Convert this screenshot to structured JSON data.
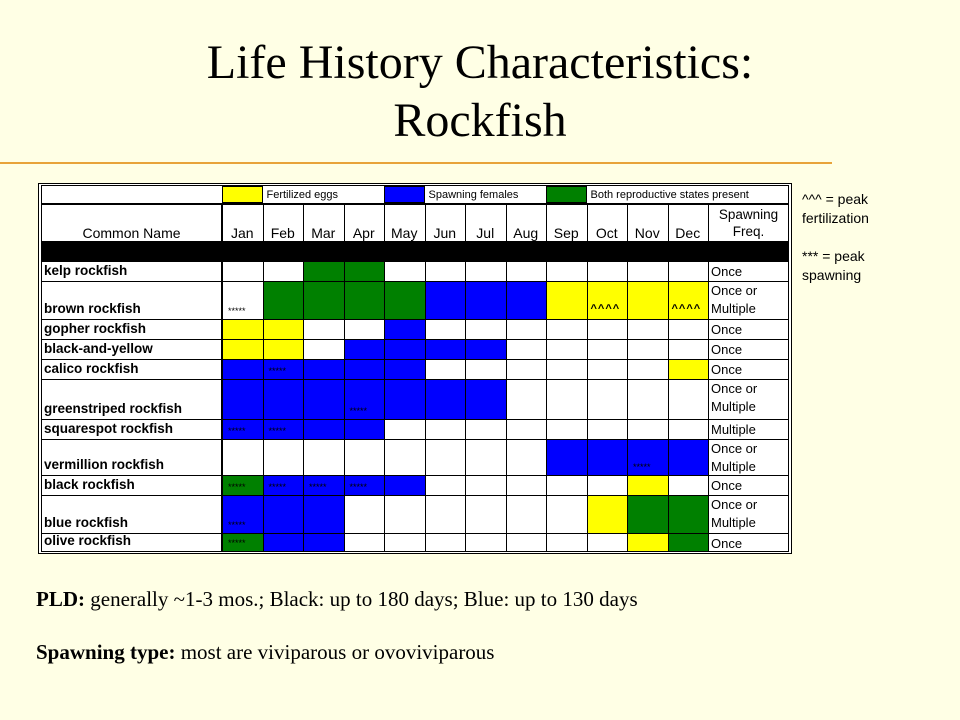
{
  "slide": {
    "title_line1": "Life History Characteristics:",
    "title_line2": "Rockfish"
  },
  "legend": {
    "fertilized": {
      "label": "Fertilized eggs",
      "color": "#ffff00"
    },
    "spawning": {
      "label": "Spawning females",
      "color": "#0000ff"
    },
    "both": {
      "label": "Both reproductive states present",
      "color": "#008000"
    }
  },
  "columns": {
    "common_name": "Common Name",
    "months": [
      "Jan",
      "Feb",
      "Mar",
      "Apr",
      "May",
      "Jun",
      "Jul",
      "Aug",
      "Sep",
      "Oct",
      "Nov",
      "Dec"
    ],
    "freq_line1": "Spawning",
    "freq_line2": "Freq."
  },
  "notes": {
    "peak_fert": "^^^ = peak\nfertilization",
    "peak_spawn": " *** = peak\nspawning"
  },
  "colors": {
    "Y": "#ffff00",
    "B": "#0000ff",
    "G": "#008000",
    "W": "#ffffff",
    "K": "#000000"
  },
  "rows": [
    {
      "name": "kelp rockfish",
      "freq": "Once",
      "cells": [
        "W",
        "W",
        "G",
        "G",
        "W",
        "W",
        "W",
        "W",
        "W",
        "W",
        "W",
        "W"
      ],
      "marks": []
    },
    {
      "name": "brown rockfish",
      "freq": "Once or\nMultiple",
      "cells": [
        "W",
        "G",
        "G",
        "G",
        "G",
        "B",
        "B",
        "B",
        "Y",
        "Y",
        "Y",
        "Y"
      ],
      "marks": [
        {
          "m": 0,
          "t": "*****"
        },
        {
          "m": 9,
          "t": "^^^^",
          "peak": true
        },
        {
          "m": 11,
          "t": "^^^^",
          "peak": true
        }
      ]
    },
    {
      "name": "gopher rockfish",
      "freq": "Once",
      "cells": [
        "Y",
        "Y",
        "W",
        "W",
        "B",
        "W",
        "W",
        "W",
        "W",
        "W",
        "W",
        "W"
      ],
      "marks": []
    },
    {
      "name": "black-and-yellow",
      "freq": "Once",
      "cells": [
        "Y",
        "Y",
        "W",
        "B",
        "B",
        "B",
        "B",
        "W",
        "W",
        "W",
        "W",
        "W"
      ],
      "marks": []
    },
    {
      "name": "calico rockfish",
      "freq": "Once",
      "cells": [
        "B",
        "B",
        "B",
        "B",
        "B",
        "W",
        "W",
        "W",
        "W",
        "W",
        "W",
        "Y"
      ],
      "marks": [
        {
          "m": 1,
          "t": "*****"
        }
      ]
    },
    {
      "name": "greenstriped rockfish",
      "freq": "Once or\nMultiple",
      "cells": [
        "B",
        "B",
        "B",
        "B",
        "B",
        "B",
        "B",
        "W",
        "W",
        "W",
        "W",
        "W"
      ],
      "marks": [
        {
          "m": 3,
          "t": "*****"
        }
      ]
    },
    {
      "name": "squarespot rockfish",
      "freq": "Multiple",
      "cells": [
        "B",
        "B",
        "B",
        "B",
        "W",
        "W",
        "W",
        "W",
        "W",
        "W",
        "W",
        "W"
      ],
      "marks": [
        {
          "m": 0,
          "t": "*****"
        },
        {
          "m": 1,
          "t": "*****"
        }
      ]
    },
    {
      "name": "vermillion rockfish",
      "freq": "Once or\nMultiple",
      "cells": [
        "W",
        "W",
        "W",
        "W",
        "W",
        "W",
        "W",
        "W",
        "B",
        "B",
        "B",
        "B"
      ],
      "marks": [
        {
          "m": 10,
          "t": "*****"
        }
      ]
    },
    {
      "name": "black rockfish",
      "freq": "Once",
      "cells": [
        "G",
        "B",
        "B",
        "B",
        "B",
        "W",
        "W",
        "W",
        "W",
        "W",
        "Y",
        "W"
      ],
      "marks": [
        {
          "m": 0,
          "t": "*****"
        },
        {
          "m": 1,
          "t": "*****"
        },
        {
          "m": 2,
          "t": "*****"
        },
        {
          "m": 3,
          "t": "*****"
        }
      ]
    },
    {
      "name": "blue rockfish",
      "freq": "Once or\nMultiple",
      "cells": [
        "B",
        "B",
        "B",
        "W",
        "W",
        "W",
        "W",
        "W",
        "W",
        "Y",
        "G",
        "G"
      ],
      "marks": [
        {
          "m": 0,
          "t": "*****"
        }
      ]
    },
    {
      "name": "olive rockfish",
      "freq": "Once",
      "cells": [
        "G",
        "B",
        "B",
        "W",
        "W",
        "W",
        "W",
        "W",
        "W",
        "W",
        "Y",
        "G"
      ],
      "marks": [
        {
          "m": 0,
          "t": "*****"
        }
      ]
    }
  ],
  "footer": {
    "pld_label": "PLD:",
    "pld_text": " generally ~1-3 mos.; Black: up to 180 days; Blue: up to 130 days",
    "spawn_label": "Spawning type:",
    "spawn_text": " most are viviparous or ovoviviparous"
  }
}
